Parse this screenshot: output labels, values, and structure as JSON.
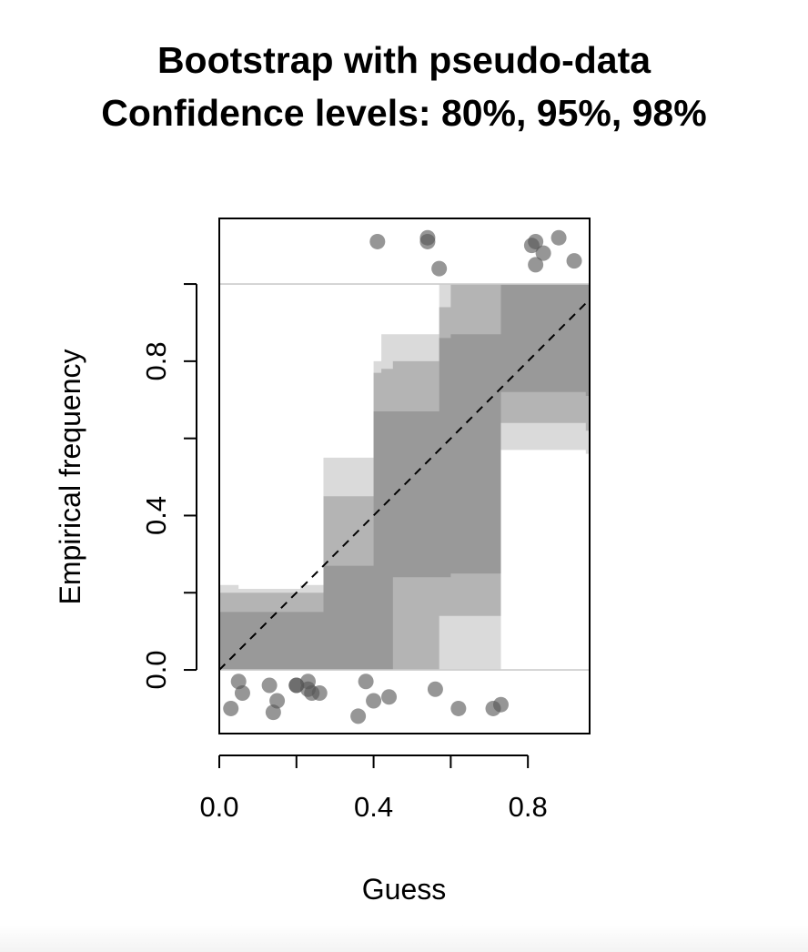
{
  "chart_data": {
    "type": "area",
    "title": "Bootstrap with pseudo-data",
    "subtitle": "Confidence levels: 80%, 95%, 98%",
    "xlabel": "Guess",
    "ylabel": "Empirical frequency",
    "xlim": [
      0.0,
      0.96
    ],
    "ylim": [
      -0.165,
      1.17
    ],
    "x_ticks": [
      0.0,
      0.2,
      0.4,
      0.6,
      0.8
    ],
    "x_tick_labels": [
      "0.0",
      "",
      "0.4",
      "",
      "0.8"
    ],
    "y_ticks": [
      0.0,
      0.2,
      0.4,
      0.6,
      0.8,
      1.0
    ],
    "y_tick_labels": [
      "0.0",
      "",
      "0.4",
      "",
      "0.8",
      ""
    ],
    "reference_lines": [
      0.0,
      1.0
    ],
    "grid": false,
    "diagonal": {
      "x": [
        0.0,
        0.96
      ],
      "y": [
        0.0,
        0.96
      ],
      "style": "dashed"
    },
    "colors": {
      "band_98": "#dadada",
      "band_95": "#b4b4b4",
      "band_80": "#999999",
      "points": "#555555",
      "reference_line": "#cccccc"
    },
    "bands": [
      {
        "name": "98%",
        "x": [
          0.0,
          0.05,
          0.21,
          0.27,
          0.38,
          0.4,
          0.42,
          0.45,
          0.57,
          0.6,
          0.72,
          0.73,
          0.86,
          0.95,
          0.96
        ],
        "upper": [
          0.22,
          0.21,
          0.22,
          0.55,
          0.55,
          0.8,
          0.87,
          0.87,
          1.0,
          1.0,
          1.0,
          1.0,
          1.0,
          1.0,
          1.0
        ],
        "lower": [
          0.0,
          0.0,
          0.0,
          0.0,
          0.0,
          0.0,
          0.0,
          0.0,
          0.0,
          0.0,
          0.0,
          0.57,
          0.57,
          0.56,
          0.56
        ]
      },
      {
        "name": "95%",
        "x": [
          0.0,
          0.05,
          0.21,
          0.27,
          0.38,
          0.4,
          0.42,
          0.45,
          0.57,
          0.6,
          0.72,
          0.73,
          0.86,
          0.95,
          0.96
        ],
        "upper": [
          0.2,
          0.2,
          0.2,
          0.45,
          0.45,
          0.77,
          0.78,
          0.8,
          0.94,
          1.0,
          1.0,
          1.0,
          1.0,
          1.0,
          1.0
        ],
        "lower": [
          0.0,
          0.0,
          0.0,
          0.0,
          0.0,
          0.0,
          0.0,
          0.0,
          0.14,
          0.14,
          0.14,
          0.64,
          0.64,
          0.62,
          0.62
        ]
      },
      {
        "name": "80%",
        "x": [
          0.0,
          0.05,
          0.21,
          0.27,
          0.38,
          0.4,
          0.42,
          0.45,
          0.57,
          0.6,
          0.72,
          0.73,
          0.86,
          0.95,
          0.96
        ],
        "upper": [
          0.15,
          0.15,
          0.15,
          0.27,
          0.27,
          0.67,
          0.67,
          0.67,
          0.86,
          0.87,
          0.87,
          1.0,
          1.0,
          1.0,
          1.0
        ],
        "lower": [
          0.0,
          0.0,
          0.0,
          0.0,
          0.0,
          0.0,
          0.0,
          0.24,
          0.24,
          0.25,
          0.25,
          0.72,
          0.72,
          0.71,
          0.71
        ]
      }
    ],
    "points": {
      "top": {
        "x": [
          0.41,
          0.54,
          0.54,
          0.57,
          0.81,
          0.82,
          0.82,
          0.84,
          0.88,
          0.92
        ],
        "y": [
          1.11,
          1.12,
          1.11,
          1.04,
          1.1,
          1.11,
          1.05,
          1.08,
          1.12,
          1.06
        ]
      },
      "bottom": {
        "x": [
          0.03,
          0.05,
          0.06,
          0.13,
          0.14,
          0.15,
          0.2,
          0.2,
          0.23,
          0.23,
          0.24,
          0.26,
          0.36,
          0.38,
          0.4,
          0.44,
          0.56,
          0.62,
          0.71,
          0.73
        ],
        "y": [
          -0.1,
          -0.03,
          -0.06,
          -0.04,
          -0.11,
          -0.08,
          -0.04,
          -0.04,
          -0.05,
          -0.03,
          -0.06,
          -0.06,
          -0.12,
          -0.03,
          -0.08,
          -0.07,
          -0.05,
          -0.1,
          -0.1,
          -0.09
        ]
      }
    }
  }
}
